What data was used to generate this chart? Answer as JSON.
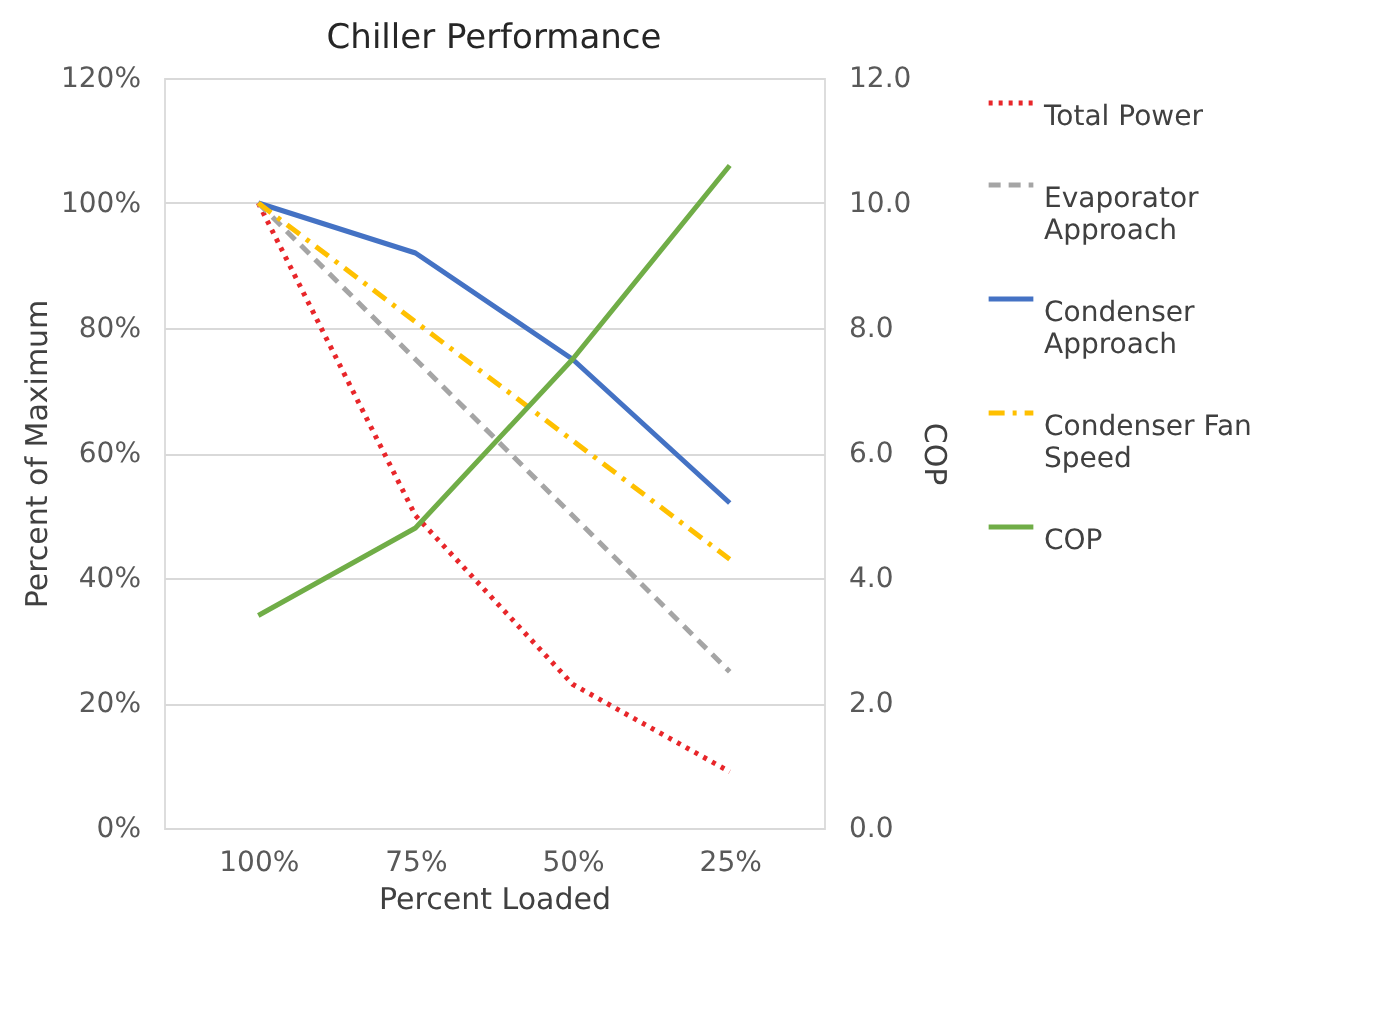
{
  "chart_data": {
    "type": "line",
    "title": "Chiller Performance",
    "xlabel": "Percent Loaded",
    "ylabel": "Percent of Maximum",
    "y2label": "COP",
    "categories": [
      "100%",
      "75%",
      "50%",
      "25%"
    ],
    "series": [
      {
        "name": "Total Power",
        "color": "#e8262a",
        "line_style": "dotted",
        "values": [
          100,
          50,
          23,
          9
        ]
      },
      {
        "name": "Evaporator Approach",
        "color": "#a5a5a5",
        "line_style": "dashed",
        "values": [
          100,
          75,
          50,
          25
        ]
      },
      {
        "name": "Condenser Approach",
        "color": "#4472c4",
        "line_style": "solid",
        "values": [
          100,
          92,
          75,
          52
        ]
      },
      {
        "name": "Condenser Fan Speed",
        "color": "#ffc000",
        "line_style": "dashdot",
        "values": [
          100,
          81,
          62,
          43
        ]
      },
      {
        "name": "COP",
        "color": "#70ad47",
        "line_style": "solid",
        "axis": "y2",
        "values": [
          3.4,
          4.8,
          7.5,
          10.6
        ]
      }
    ],
    "ylim": [
      0,
      120
    ],
    "yticks": [
      {
        "value": 0,
        "label": "0%"
      },
      {
        "value": 20,
        "label": "20%"
      },
      {
        "value": 40,
        "label": "40%"
      },
      {
        "value": 60,
        "label": "60%"
      },
      {
        "value": 80,
        "label": "80%"
      },
      {
        "value": 100,
        "label": "100%"
      },
      {
        "value": 120,
        "label": "120%"
      }
    ],
    "y2lim": [
      0,
      12
    ],
    "y2ticks": [
      {
        "value": 0,
        "label": "0.0"
      },
      {
        "value": 2,
        "label": "2.0"
      },
      {
        "value": 4,
        "label": "4.0"
      },
      {
        "value": 6,
        "label": "6.0"
      },
      {
        "value": 8,
        "label": "8.0"
      },
      {
        "value": 10,
        "label": "10.0"
      },
      {
        "value": 12,
        "label": "12.0"
      }
    ],
    "grid": "y",
    "legend": "right",
    "marker": "none"
  }
}
